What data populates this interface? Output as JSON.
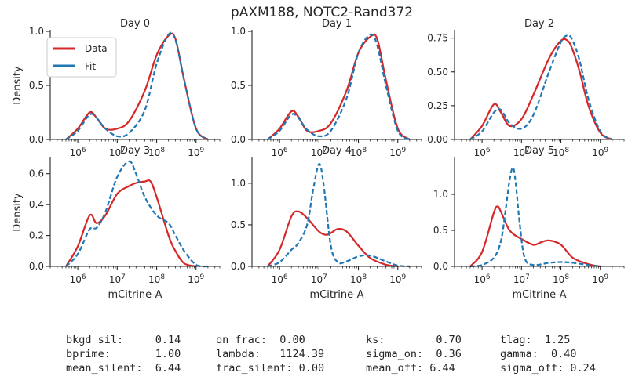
{
  "title": "pAXM188, NOTC2-Rand372",
  "colors": {
    "data": "#d62728",
    "fit": "#1f77b4"
  },
  "legend": {
    "placement": "top-left",
    "entries": [
      "Data",
      "Fit"
    ]
  },
  "chart_data": [
    {
      "type": "line",
      "panel_title": "Day 0",
      "xscale": "log",
      "xlim": [
        200000,
        4000000000
      ],
      "ylim": [
        0,
        1.0
      ],
      "xticks": [
        1000000,
        10000000,
        100000000,
        1000000000
      ],
      "yticks": [
        0.0,
        0.5,
        1.0
      ],
      "yticklabels": [
        "0.0",
        "0.5",
        "1.0"
      ],
      "ylabel": "Density",
      "xlabel": "",
      "grid": false,
      "series": [
        {
          "name": "Data",
          "x": [
            500000,
            1000000,
            2000000,
            3000000,
            5000000,
            10000000,
            20000000,
            50000000,
            100000000,
            200000000,
            300000000,
            500000000,
            1000000000,
            2000000000
          ],
          "y": [
            0.0,
            0.1,
            0.25,
            0.2,
            0.1,
            0.1,
            0.17,
            0.45,
            0.78,
            0.96,
            0.93,
            0.55,
            0.1,
            0.0
          ]
        },
        {
          "name": "Fit",
          "x": [
            500000,
            1000000,
            2000000,
            3000000,
            5000000,
            10000000,
            20000000,
            50000000,
            100000000,
            200000000,
            300000000,
            500000000,
            1000000000,
            2000000000
          ],
          "y": [
            0.0,
            0.08,
            0.23,
            0.2,
            0.1,
            0.03,
            0.06,
            0.27,
            0.7,
            0.97,
            0.92,
            0.55,
            0.1,
            0.0
          ]
        }
      ]
    },
    {
      "type": "line",
      "panel_title": "Day 1",
      "xscale": "log",
      "xlim": [
        200000,
        4000000000
      ],
      "ylim": [
        0,
        1.0
      ],
      "xticks": [
        1000000,
        10000000,
        100000000,
        1000000000
      ],
      "yticks": [
        0.0,
        0.5,
        1.0
      ],
      "yticklabels": [
        "0.0",
        "0.5",
        "1.0"
      ],
      "ylabel": "",
      "xlabel": "",
      "grid": false,
      "series": [
        {
          "name": "Data",
          "x": [
            500000,
            1000000,
            2000000,
            3000000,
            5000000,
            10000000,
            20000000,
            50000000,
            100000000,
            200000000,
            300000000,
            500000000,
            1000000000,
            2000000000
          ],
          "y": [
            0.0,
            0.1,
            0.26,
            0.21,
            0.08,
            0.08,
            0.15,
            0.45,
            0.8,
            0.95,
            0.93,
            0.55,
            0.1,
            0.0
          ]
        },
        {
          "name": "Fit",
          "x": [
            500000,
            1000000,
            2000000,
            3000000,
            5000000,
            10000000,
            20000000,
            50000000,
            100000000,
            200000000,
            300000000,
            500000000,
            1000000000,
            2000000000
          ],
          "y": [
            0.0,
            0.08,
            0.23,
            0.2,
            0.09,
            0.03,
            0.08,
            0.38,
            0.8,
            0.97,
            0.87,
            0.5,
            0.08,
            0.0
          ]
        }
      ]
    },
    {
      "type": "line",
      "panel_title": "Day 2",
      "xscale": "log",
      "xlim": [
        200000,
        4000000000
      ],
      "ylim": [
        0,
        0.8
      ],
      "xticks": [
        1000000,
        10000000,
        100000000,
        1000000000
      ],
      "yticks": [
        0.0,
        0.25,
        0.5,
        0.75
      ],
      "yticklabels": [
        "0.00",
        "0.25",
        "0.50",
        "0.75"
      ],
      "ylabel": "",
      "xlabel": "",
      "grid": false,
      "series": [
        {
          "name": "Data",
          "x": [
            500000,
            1000000,
            2000000,
            3000000,
            5000000,
            10000000,
            20000000,
            50000000,
            100000000,
            150000000,
            200000000,
            300000000,
            500000000,
            1000000000,
            2000000000
          ],
          "y": [
            0.0,
            0.1,
            0.26,
            0.2,
            0.1,
            0.15,
            0.33,
            0.6,
            0.73,
            0.73,
            0.66,
            0.5,
            0.25,
            0.05,
            0.0
          ]
        },
        {
          "name": "Fit",
          "x": [
            500000,
            1000000,
            2000000,
            3000000,
            5000000,
            10000000,
            20000000,
            50000000,
            100000000,
            150000000,
            200000000,
            300000000,
            500000000,
            1000000000,
            2000000000
          ],
          "y": [
            0.0,
            0.06,
            0.2,
            0.22,
            0.12,
            0.08,
            0.18,
            0.5,
            0.72,
            0.77,
            0.73,
            0.58,
            0.3,
            0.06,
            0.0
          ]
        }
      ]
    },
    {
      "type": "line",
      "panel_title": "Day 3",
      "xscale": "log",
      "xlim": [
        200000,
        4000000000
      ],
      "ylim": [
        0,
        0.7
      ],
      "xticks": [
        1000000,
        10000000,
        100000000,
        1000000000
      ],
      "yticks": [
        0.0,
        0.2,
        0.4,
        0.6
      ],
      "yticklabels": [
        "0.0",
        "0.2",
        "0.4",
        "0.6"
      ],
      "ylabel": "Density",
      "xlabel": "mCitrine-A",
      "grid": false,
      "series": [
        {
          "name": "Data",
          "x": [
            500000,
            1000000,
            2000000,
            3000000,
            5000000,
            10000000,
            20000000,
            30000000,
            50000000,
            70000000,
            100000000,
            200000000,
            300000000,
            500000000,
            1000000000
          ],
          "y": [
            0.0,
            0.13,
            0.33,
            0.28,
            0.33,
            0.47,
            0.52,
            0.54,
            0.55,
            0.55,
            0.45,
            0.2,
            0.1,
            0.02,
            0.0
          ]
        },
        {
          "name": "Fit",
          "x": [
            500000,
            1000000,
            2000000,
            3000000,
            5000000,
            10000000,
            20000000,
            30000000,
            50000000,
            100000000,
            200000000,
            300000000,
            500000000,
            1000000000,
            2000000000
          ],
          "y": [
            0.0,
            0.08,
            0.24,
            0.25,
            0.35,
            0.58,
            0.68,
            0.6,
            0.45,
            0.33,
            0.28,
            0.2,
            0.1,
            0.01,
            0.0
          ]
        }
      ]
    },
    {
      "type": "line",
      "panel_title": "Day 4",
      "xscale": "log",
      "xlim": [
        200000,
        4000000000
      ],
      "ylim": [
        0,
        1.3
      ],
      "xticks": [
        1000000,
        10000000,
        100000000,
        1000000000
      ],
      "yticks": [
        0.0,
        0.5,
        1.0
      ],
      "yticklabels": [
        "0.0",
        "0.5",
        "1.0"
      ],
      "ylabel": "",
      "xlabel": "mCitrine-A",
      "grid": false,
      "series": [
        {
          "name": "Data",
          "x": [
            500000,
            1000000,
            2000000,
            3000000,
            5000000,
            10000000,
            15000000,
            20000000,
            30000000,
            50000000,
            100000000,
            200000000,
            500000000,
            1000000000
          ],
          "y": [
            0.0,
            0.2,
            0.6,
            0.66,
            0.58,
            0.42,
            0.38,
            0.4,
            0.45,
            0.42,
            0.25,
            0.1,
            0.02,
            0.0
          ]
        },
        {
          "name": "Fit",
          "x": [
            500000,
            1000000,
            2000000,
            3000000,
            5000000,
            7000000,
            10000000,
            13000000,
            20000000,
            30000000,
            50000000,
            100000000,
            200000000,
            500000000,
            1000000000,
            2000000000
          ],
          "y": [
            0.0,
            0.05,
            0.2,
            0.28,
            0.5,
            0.9,
            1.23,
            1.0,
            0.25,
            0.05,
            0.06,
            0.12,
            0.13,
            0.06,
            0.01,
            0.0
          ]
        }
      ]
    },
    {
      "type": "line",
      "panel_title": "Day 5",
      "xscale": "log",
      "xlim": [
        200000,
        4000000000
      ],
      "ylim": [
        0,
        1.5
      ],
      "xticks": [
        1000000,
        10000000,
        100000000,
        1000000000
      ],
      "yticks": [
        0.0,
        0.5,
        1.0
      ],
      "yticklabels": [
        "0.0",
        "0.5",
        "1.0"
      ],
      "ylabel": "",
      "xlabel": "mCitrine-A",
      "grid": false,
      "series": [
        {
          "name": "Data",
          "x": [
            500000,
            1000000,
            2000000,
            2500000,
            3000000,
            5000000,
            10000000,
            20000000,
            30000000,
            50000000,
            100000000,
            200000000,
            500000000,
            1000000000
          ],
          "y": [
            0.0,
            0.2,
            0.75,
            0.83,
            0.76,
            0.5,
            0.38,
            0.3,
            0.33,
            0.36,
            0.3,
            0.12,
            0.03,
            0.0
          ]
        },
        {
          "name": "Fit",
          "x": [
            500000,
            1000000,
            2000000,
            3000000,
            4000000,
            5000000,
            6000000,
            7000000,
            9000000,
            12000000,
            20000000,
            50000000,
            100000000,
            200000000,
            500000000,
            1000000000
          ],
          "y": [
            0.0,
            0.02,
            0.12,
            0.35,
            0.8,
            1.2,
            1.37,
            1.2,
            0.6,
            0.12,
            0.02,
            0.05,
            0.06,
            0.05,
            0.02,
            0.0
          ]
        }
      ]
    }
  ],
  "stats": [
    [
      "bkgd sil:     0.14",
      "on frac:  0.00",
      "ks:        0.70",
      "tlag:  1.25"
    ],
    [
      "bprime:       1.00",
      "lambda:   1124.39",
      "sigma_on:  0.36",
      "gamma:  0.40"
    ],
    [
      "mean_silent:  6.44",
      "frac_silent: 0.00",
      "mean_off: 6.44",
      "sigma_off: 0.24"
    ]
  ]
}
